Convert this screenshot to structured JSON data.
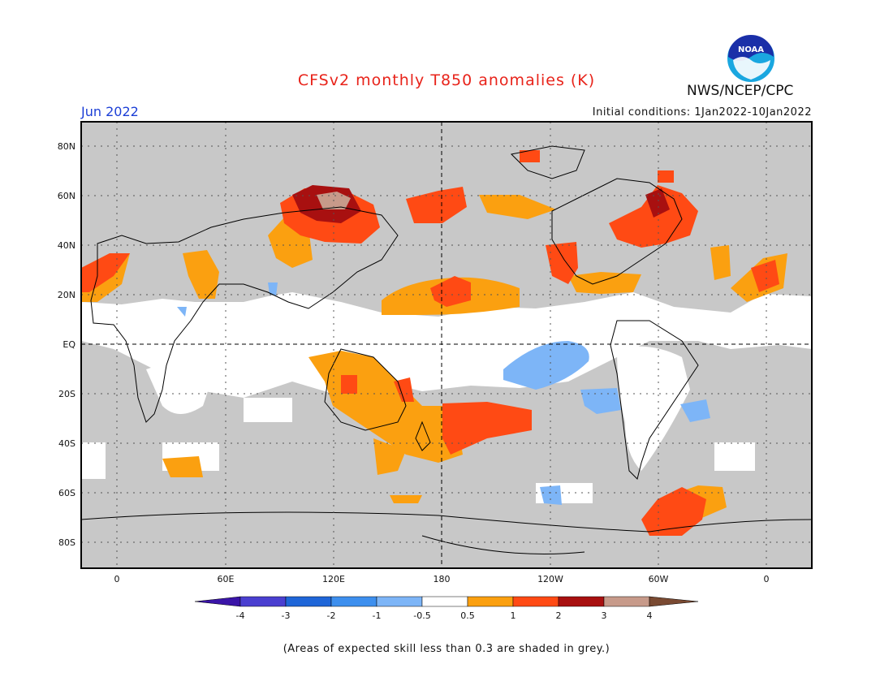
{
  "header": {
    "title": "CFSv2 monthly T850 anomalies (K)",
    "month": "Jun 2022",
    "agency": "NWS/NCEP/CPC",
    "initial_conditions": "Initial conditions: 1Jan2022-10Jan2022",
    "logo_text": "NOAA"
  },
  "map": {
    "latitude_labels": [
      "80N",
      "60N",
      "40N",
      "20N",
      "EQ",
      "20S",
      "40S",
      "60S",
      "80S"
    ],
    "longitude_labels": [
      "0",
      "60E",
      "120E",
      "180",
      "120W",
      "60W",
      "0"
    ],
    "grey_color": "#c8c8c8",
    "ocean_land_color": "#ffffff"
  },
  "colorbar": {
    "ticks": [
      "-4",
      "-3",
      "-2",
      "-1",
      "-0.5",
      "0.5",
      "1",
      "2",
      "3",
      "4"
    ],
    "colors": [
      "#3a14a8",
      "#4a3fd0",
      "#1f66d8",
      "#3d8fee",
      "#7db5f7",
      "#ffffff",
      "#fba010",
      "#ff4a14",
      "#a81010",
      "#c79a8a",
      "#7a4a32"
    ]
  },
  "footnote": "(Areas of expected skill less than 0.3 are shaded in grey.)"
}
